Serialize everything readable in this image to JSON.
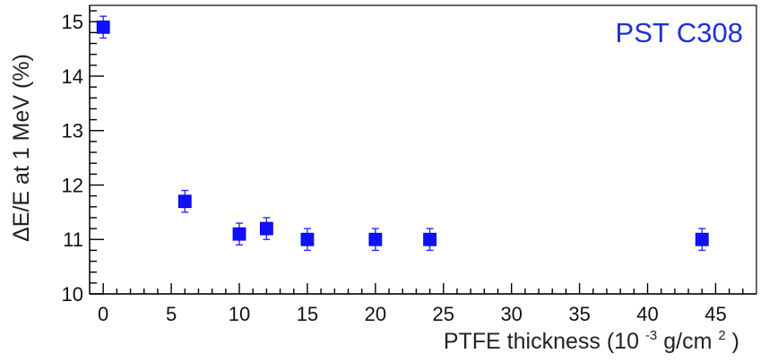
{
  "chart_data": {
    "type": "scatter",
    "title": "",
    "xlabel": {
      "prefix": "PTFE thickness (10",
      "superscript": "-3",
      "middle": " g/cm",
      "superscript2": "2",
      "suffix": ")"
    },
    "ylabel": "ΔE/E at 1 MeV (%)",
    "xlim": [
      -1,
      48
    ],
    "ylim": [
      10,
      15.3
    ],
    "x_ticks": [
      0,
      5,
      10,
      15,
      20,
      25,
      30,
      35,
      40,
      45
    ],
    "y_ticks": [
      10,
      11,
      12,
      13,
      14,
      15
    ],
    "grid": false,
    "legend": null,
    "annotation": "PST C308",
    "colors": {
      "marker": "#1010ff",
      "annotation": "#1f2fd8"
    },
    "series": [
      {
        "points": [
          {
            "x": 0,
            "y": 14.9,
            "yerr": 0.2
          },
          {
            "x": 6,
            "y": 11.7,
            "yerr": 0.2
          },
          {
            "x": 10,
            "y": 11.1,
            "yerr": 0.2
          },
          {
            "x": 12,
            "y": 11.2,
            "yerr": 0.2
          },
          {
            "x": 15,
            "y": 11.0,
            "yerr": 0.2
          },
          {
            "x": 20,
            "y": 11.0,
            "yerr": 0.2
          },
          {
            "x": 24,
            "y": 11.0,
            "yerr": 0.2
          },
          {
            "x": 44,
            "y": 11.0,
            "yerr": 0.2
          }
        ]
      }
    ]
  }
}
